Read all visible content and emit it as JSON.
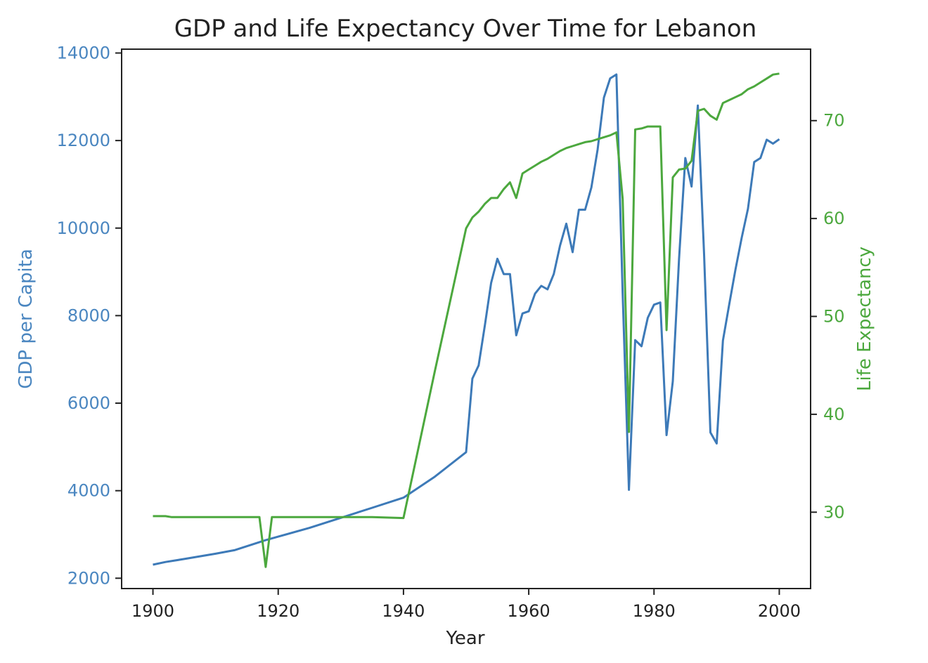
{
  "chart_data": {
    "type": "line",
    "title": "GDP and Life Expectancy Over Time for Lebanon",
    "xlabel": "Year",
    "xlim": [
      1895,
      2005
    ],
    "xticks": [
      1900,
      1920,
      1940,
      1960,
      1980,
      2000
    ],
    "colors": {
      "gdp": "#3d7ab8",
      "life": "#4ca83e",
      "axis": "#222222",
      "gdp_ticks": "#4a86c0",
      "life_ticks": "#4ca83e"
    },
    "y_left": {
      "label": "GDP per Capita",
      "ylim": [
        1764,
        14088
      ],
      "ticks": [
        2000,
        4000,
        6000,
        8000,
        10000,
        12000,
        14000
      ]
    },
    "y_right": {
      "label": "Life Expectancy",
      "ylim": [
        22.2,
        77.3
      ],
      "ticks": [
        30,
        40,
        50,
        60,
        70
      ]
    },
    "series": [
      {
        "key": "gdp",
        "axis": "left",
        "x": [
          1900,
          1902,
          1905,
          1910,
          1913,
          1918,
          1920,
          1925,
          1930,
          1935,
          1940,
          1945,
          1950,
          1951,
          1952,
          1953,
          1954,
          1955,
          1956,
          1957,
          1958,
          1959,
          1960,
          1961,
          1962,
          1963,
          1964,
          1965,
          1966,
          1967,
          1968,
          1969,
          1970,
          1971,
          1972,
          1973,
          1974,
          1975,
          1976,
          1977,
          1978,
          1979,
          1980,
          1981,
          1982,
          1983,
          1984,
          1985,
          1986,
          1987,
          1988,
          1989,
          1990,
          1991,
          1992,
          1993,
          1994,
          1995,
          1996,
          1997,
          1998,
          1999,
          2000
        ],
        "values": [
          2310,
          2370,
          2440,
          2560,
          2640,
          2870,
          2950,
          3150,
          3380,
          3610,
          3840,
          4320,
          4880,
          6560,
          6860,
          7780,
          8750,
          9300,
          8950,
          8950,
          7550,
          8050,
          8100,
          8500,
          8680,
          8600,
          8950,
          9600,
          10100,
          9450,
          10420,
          10420,
          10930,
          11800,
          12980,
          13420,
          13510,
          8500,
          4020,
          7440,
          7300,
          7950,
          8250,
          8300,
          5270,
          6500,
          9300,
          11600,
          10950,
          12800,
          9400,
          5330,
          5080,
          7430,
          8250,
          9050,
          9780,
          10440,
          11510,
          11600,
          12020,
          11930,
          12030
        ]
      },
      {
        "key": "life",
        "axis": "right",
        "x": [
          1900,
          1902,
          1903,
          1910,
          1915,
          1917,
          1918,
          1919,
          1925,
          1935,
          1940,
          1945,
          1950,
          1951,
          1952,
          1953,
          1954,
          1955,
          1956,
          1957,
          1958,
          1959,
          1960,
          1961,
          1962,
          1963,
          1964,
          1965,
          1966,
          1967,
          1968,
          1969,
          1970,
          1971,
          1972,
          1973,
          1974,
          1975,
          1976,
          1977,
          1978,
          1979,
          1980,
          1981,
          1982,
          1983,
          1984,
          1985,
          1986,
          1987,
          1988,
          1989,
          1990,
          1991,
          1992,
          1993,
          1994,
          1995,
          1996,
          1997,
          1998,
          1999,
          2000
        ],
        "values": [
          29.6,
          29.6,
          29.5,
          29.5,
          29.5,
          29.5,
          24.4,
          29.5,
          29.5,
          29.5,
          29.4,
          44.4,
          59.0,
          60.1,
          60.7,
          61.5,
          62.1,
          62.1,
          63.0,
          63.7,
          62.1,
          64.6,
          65.0,
          65.4,
          65.8,
          66.1,
          66.5,
          66.9,
          67.2,
          67.4,
          67.6,
          67.8,
          67.9,
          68.1,
          68.3,
          68.5,
          68.8,
          62.0,
          38.2,
          69.1,
          69.2,
          69.4,
          69.4,
          69.4,
          48.6,
          64.2,
          65.0,
          65.1,
          65.9,
          71.0,
          71.2,
          70.5,
          70.1,
          71.8,
          72.1,
          72.4,
          72.7,
          73.2,
          73.5,
          73.9,
          74.3,
          74.7,
          74.8
        ]
      }
    ]
  }
}
